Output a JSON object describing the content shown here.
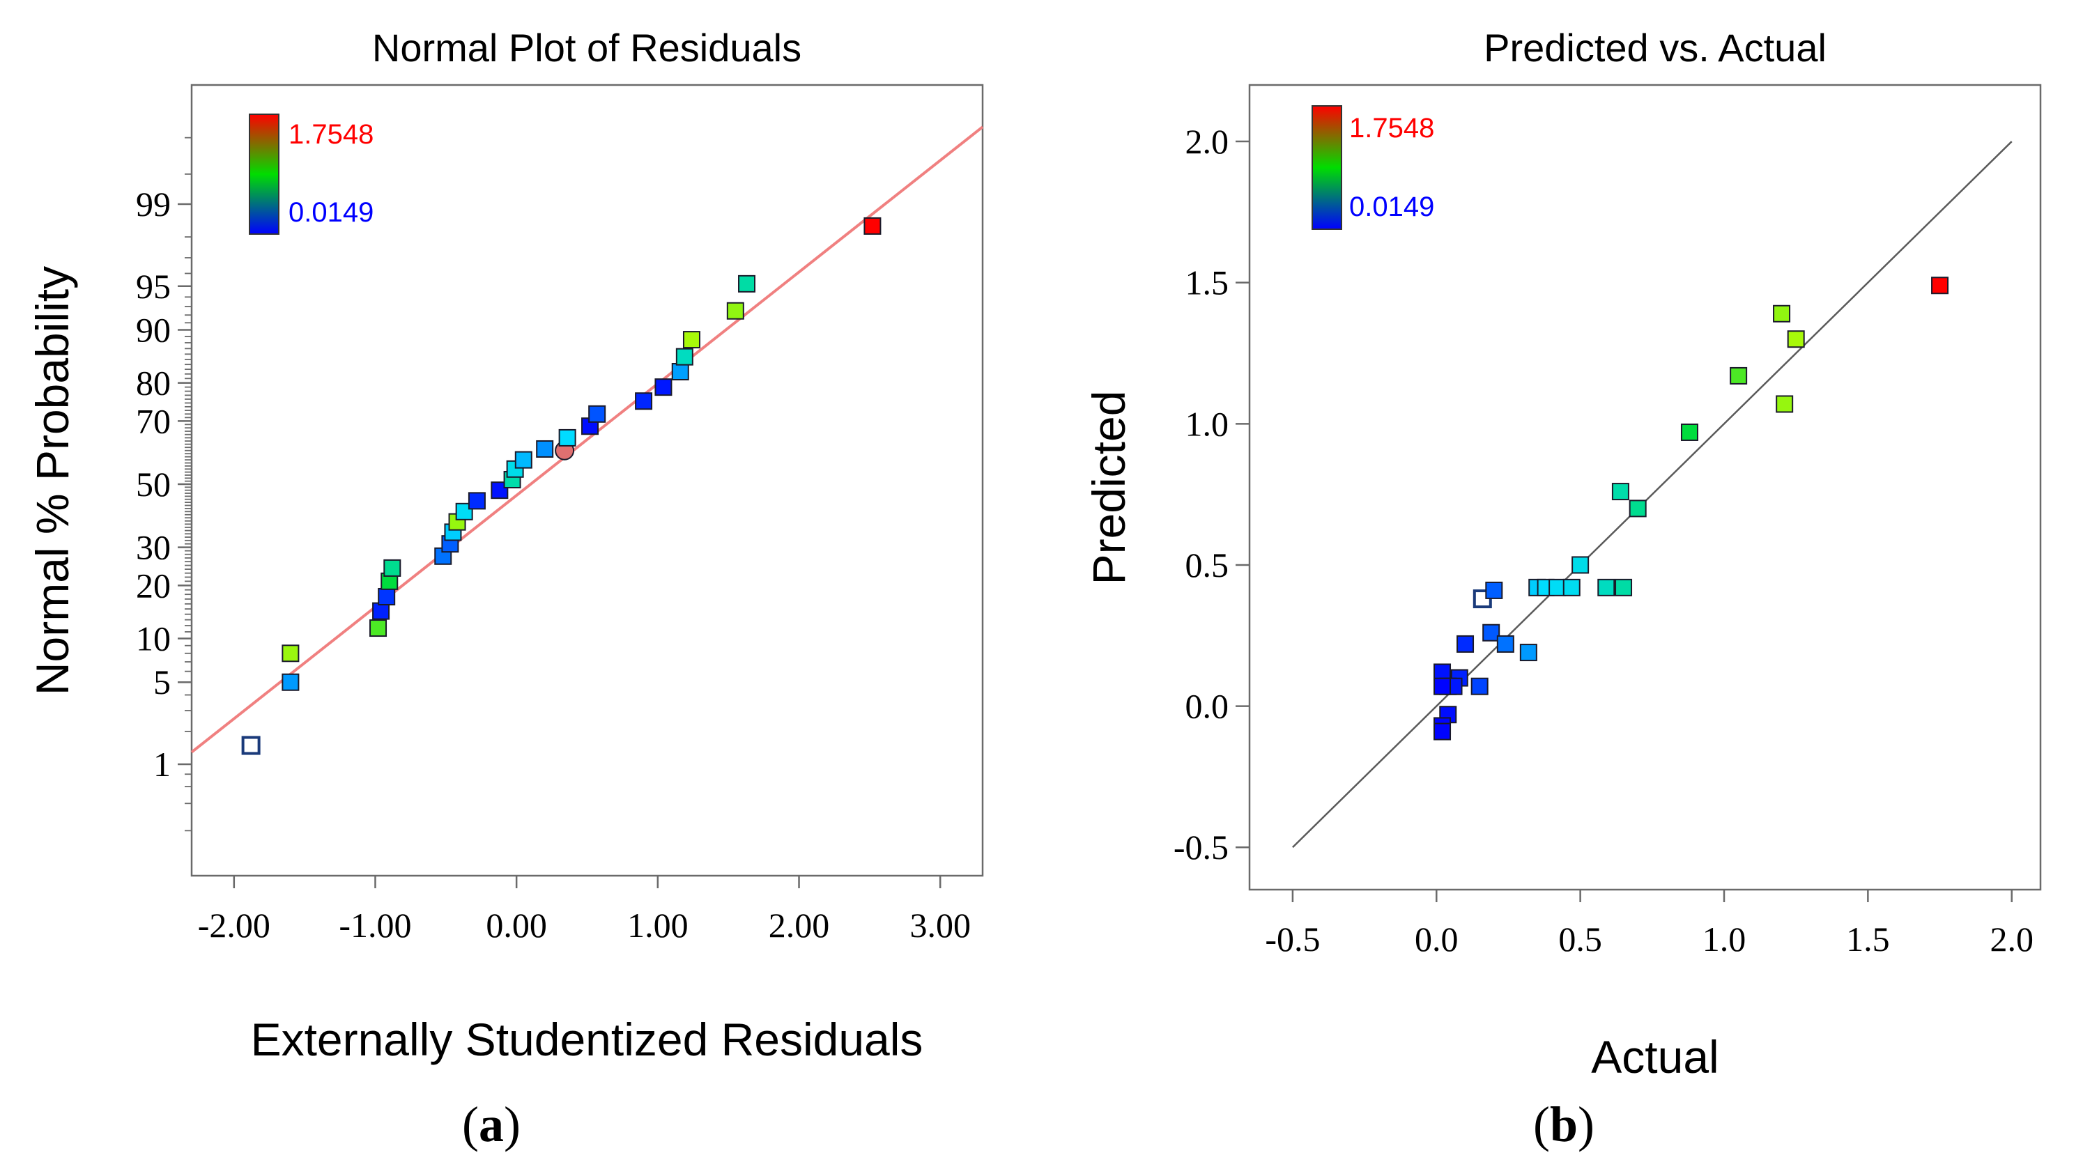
{
  "chart_data": [
    {
      "id": "a",
      "type": "scatter",
      "title": "Normal Plot of Residuals",
      "xlabel": "Externally Studentized Residuals",
      "ylabel": "Normal % Probability",
      "caption_letter": "a",
      "xlim": [
        -2.3,
        3.3
      ],
      "x_ticks": [
        -2,
        -1,
        0,
        1,
        2,
        3
      ],
      "x_tick_labels": [
        "-2.00",
        "-1.00",
        "0.00",
        "1.00",
        "2.00",
        "3.00"
      ],
      "y_scale": "normal-probability",
      "y_ticks": [
        1,
        5,
        10,
        20,
        30,
        50,
        70,
        80,
        90,
        95,
        99
      ],
      "y_tick_labels": [
        "1",
        "5",
        "10",
        "20",
        "30",
        "50",
        "70",
        "80",
        "90",
        "95",
        "99"
      ],
      "colorbar": {
        "max_label": "1.7548",
        "min_label": "0.0149",
        "max": 1.7548,
        "min": 0.0149
      },
      "fit_line": {
        "color": "#f08080",
        "x": [
          -2.3,
          3.3
        ],
        "y": [
          1.3,
          99.85
        ]
      },
      "points": [
        {
          "x": -1.88,
          "y": 1.5,
          "c": 0.16,
          "open": true
        },
        {
          "x": -1.6,
          "y": 5.0,
          "c": 0.32
        },
        {
          "x": -1.6,
          "y": 8.0,
          "c": 1.22
        },
        {
          "x": -0.98,
          "y": 11.6,
          "c": 1.05
        },
        {
          "x": -0.96,
          "y": 14.6,
          "c": 0.08
        },
        {
          "x": -0.92,
          "y": 17.5,
          "c": 0.12
        },
        {
          "x": -0.9,
          "y": 21.0,
          "c": 0.88
        },
        {
          "x": -0.88,
          "y": 24.3,
          "c": 0.7
        },
        {
          "x": -0.52,
          "y": 27.5,
          "c": 0.24
        },
        {
          "x": -0.47,
          "y": 31.0,
          "c": 0.2
        },
        {
          "x": -0.45,
          "y": 34.5,
          "c": 0.42
        },
        {
          "x": -0.42,
          "y": 37.7,
          "c": 1.21
        },
        {
          "x": -0.37,
          "y": 41.0,
          "c": 0.47
        },
        {
          "x": -0.28,
          "y": 44.5,
          "c": 0.1
        },
        {
          "x": -0.12,
          "y": 48.0,
          "c": 0.05
        },
        {
          "x": -0.03,
          "y": 51.5,
          "c": 0.64
        },
        {
          "x": -0.01,
          "y": 55.0,
          "c": 0.5
        },
        {
          "x": 0.05,
          "y": 58.0,
          "c": 0.38
        },
        {
          "x": 0.2,
          "y": 61.5,
          "c": 0.3
        },
        {
          "x": 0.34,
          "y": 61.0,
          "c": 1.2,
          "circle": true
        },
        {
          "x": 0.36,
          "y": 65.0,
          "c": 0.45
        },
        {
          "x": 0.52,
          "y": 68.5,
          "c": 0.04
        },
        {
          "x": 0.57,
          "y": 72.0,
          "c": 0.18
        },
        {
          "x": 0.9,
          "y": 75.5,
          "c": 0.09
        },
        {
          "x": 1.04,
          "y": 79.0,
          "c": 0.06
        },
        {
          "x": 1.16,
          "y": 82.5,
          "c": 0.33
        },
        {
          "x": 1.19,
          "y": 85.5,
          "c": 0.59
        },
        {
          "x": 1.24,
          "y": 88.5,
          "c": 1.25
        },
        {
          "x": 1.55,
          "y": 92.5,
          "c": 1.2
        },
        {
          "x": 1.63,
          "y": 95.2,
          "c": 0.65
        },
        {
          "x": 2.52,
          "y": 98.4,
          "c": 1.7548
        }
      ]
    },
    {
      "id": "b",
      "type": "scatter",
      "title": "Predicted vs. Actual",
      "xlabel": "Actual",
      "ylabel": "Predicted",
      "caption_letter": "b",
      "xlim": [
        -0.65,
        2.1
      ],
      "ylim": [
        -0.65,
        2.2
      ],
      "x_ticks": [
        -0.5,
        0,
        0.5,
        1,
        1.5,
        2
      ],
      "x_tick_labels": [
        "-0.5",
        "0.0",
        "0.5",
        "1.0",
        "1.5",
        "2.0"
      ],
      "y_ticks": [
        -0.5,
        0,
        0.5,
        1,
        1.5,
        2
      ],
      "y_tick_labels": [
        "-0.5",
        "0.0",
        "0.5",
        "1.0",
        "1.5",
        "2.0"
      ],
      "colorbar": {
        "max_label": "1.7548",
        "min_label": "0.0149",
        "max": 1.7548,
        "min": 0.0149
      },
      "fit_line": {
        "color": "#5a5a5a",
        "x": [
          -0.5,
          2.0
        ],
        "y": [
          -0.5,
          2.0
        ]
      },
      "points": [
        {
          "x": 1.75,
          "y": 1.49,
          "c": 1.7548
        },
        {
          "x": 1.2,
          "y": 1.39,
          "c": 1.2
        },
        {
          "x": 1.25,
          "y": 1.3,
          "c": 1.25
        },
        {
          "x": 1.05,
          "y": 1.17,
          "c": 1.05
        },
        {
          "x": 1.21,
          "y": 1.07,
          "c": 1.21
        },
        {
          "x": 0.88,
          "y": 0.97,
          "c": 0.88
        },
        {
          "x": 0.64,
          "y": 0.76,
          "c": 0.64
        },
        {
          "x": 0.7,
          "y": 0.7,
          "c": 0.7
        },
        {
          "x": 0.5,
          "y": 0.5,
          "c": 0.5
        },
        {
          "x": 0.35,
          "y": 0.42,
          "c": 0.42
        },
        {
          "x": 0.38,
          "y": 0.42,
          "c": 0.45
        },
        {
          "x": 0.42,
          "y": 0.42,
          "c": 0.47
        },
        {
          "x": 0.47,
          "y": 0.42,
          "c": 0.48
        },
        {
          "x": 0.59,
          "y": 0.42,
          "c": 0.59
        },
        {
          "x": 0.65,
          "y": 0.42,
          "c": 0.65
        },
        {
          "x": 0.16,
          "y": 0.38,
          "c": 0.16,
          "open": true
        },
        {
          "x": 0.2,
          "y": 0.41,
          "c": 0.2
        },
        {
          "x": 0.19,
          "y": 0.26,
          "c": 0.19
        },
        {
          "x": 0.24,
          "y": 0.22,
          "c": 0.24
        },
        {
          "x": 0.32,
          "y": 0.19,
          "c": 0.32
        },
        {
          "x": 0.1,
          "y": 0.22,
          "c": 0.1
        },
        {
          "x": 0.15,
          "y": 0.07,
          "c": 0.15
        },
        {
          "x": 0.02,
          "y": 0.12,
          "c": 0.05
        },
        {
          "x": 0.08,
          "y": 0.1,
          "c": 0.08
        },
        {
          "x": 0.04,
          "y": 0.07,
          "c": 0.04
        },
        {
          "x": 0.06,
          "y": 0.07,
          "c": 0.06
        },
        {
          "x": 0.02,
          "y": 0.07,
          "c": 0.02
        },
        {
          "x": 0.04,
          "y": -0.03,
          "c": 0.04
        },
        {
          "x": 0.02,
          "y": -0.07,
          "c": 0.02
        },
        {
          "x": 0.02,
          "y": -0.09,
          "c": 0.02
        }
      ]
    }
  ]
}
